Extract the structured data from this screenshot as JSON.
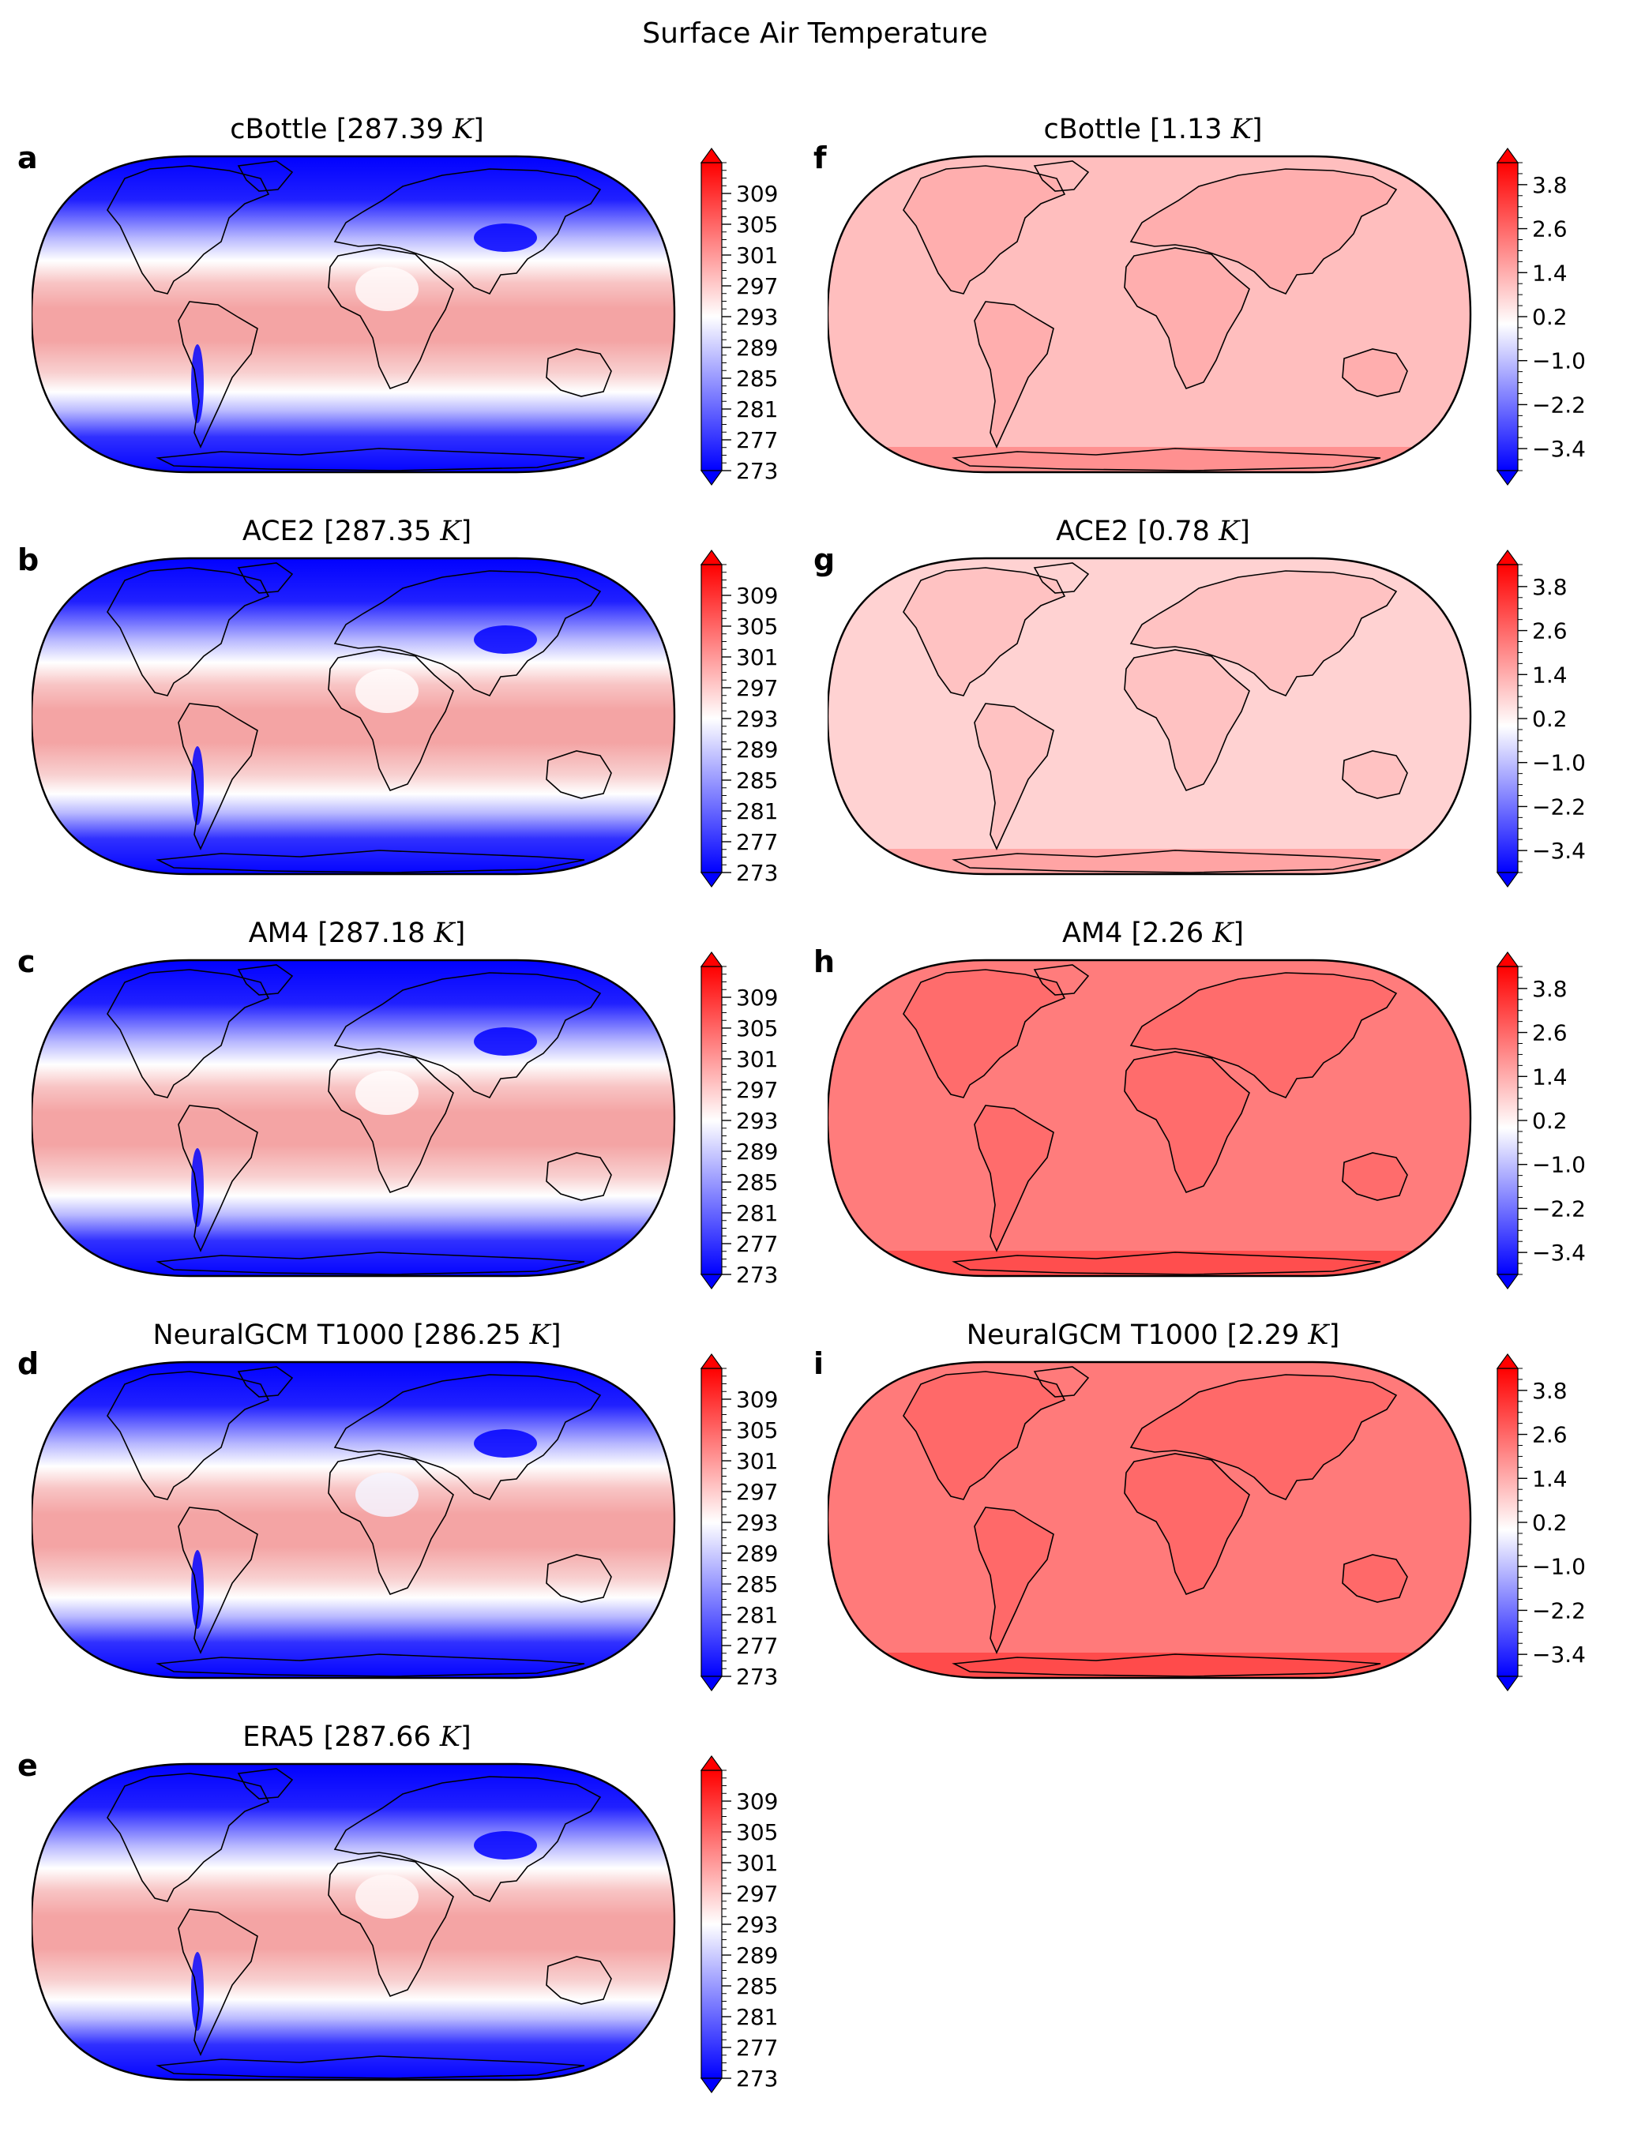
{
  "figure_title": "Surface Air Temperature",
  "colors": {
    "cold": "#0000ff",
    "neutral": "#ffffff",
    "warm": "#ff0000",
    "coastline": "#000000"
  },
  "colorbars": {
    "absolute": {
      "range": [
        273,
        313
      ],
      "ticks": [
        "309",
        "305",
        "301",
        "297",
        "293",
        "289",
        "285",
        "281",
        "277",
        "273"
      ],
      "tick_values": [
        309,
        305,
        301,
        297,
        293,
        289,
        285,
        281,
        277,
        273
      ],
      "extend": "both"
    },
    "difference": {
      "range": [
        -4.0,
        4.4
      ],
      "ticks": [
        "3.8",
        "2.6",
        "1.4",
        "0.2",
        "−1.0",
        "−2.2",
        "−3.4"
      ],
      "tick_values": [
        3.8,
        2.6,
        1.4,
        0.2,
        -1.0,
        -2.2,
        -3.4
      ],
      "extend": "both"
    }
  },
  "panels": [
    {
      "letter": "a",
      "name": "cBottle",
      "value": "287.39",
      "unit": "K",
      "kind": "absolute",
      "fill": 287.39
    },
    {
      "letter": "b",
      "name": "ACE2",
      "value": "287.35",
      "unit": "K",
      "kind": "absolute",
      "fill": 287.35
    },
    {
      "letter": "c",
      "name": "AM4",
      "value": "287.18",
      "unit": "K",
      "kind": "absolute",
      "fill": 287.18
    },
    {
      "letter": "d",
      "name": "NeuralGCM T1000",
      "value": "286.25",
      "unit": "K",
      "kind": "absolute",
      "fill": 286.25
    },
    {
      "letter": "e",
      "name": "ERA5",
      "value": "287.66",
      "unit": "K",
      "kind": "absolute",
      "fill": 287.66
    },
    {
      "letter": "f",
      "name": "cBottle",
      "value": "1.13",
      "unit": "K",
      "kind": "difference",
      "fill": 1.13
    },
    {
      "letter": "g",
      "name": "ACE2",
      "value": "0.78",
      "unit": "K",
      "kind": "difference",
      "fill": 0.78
    },
    {
      "letter": "h",
      "name": "AM4",
      "value": "2.26",
      "unit": "K",
      "kind": "difference",
      "fill": 2.26
    },
    {
      "letter": "i",
      "name": "NeuralGCM T1000",
      "value": "2.29",
      "unit": "K",
      "kind": "difference",
      "fill": 2.29
    }
  ]
}
